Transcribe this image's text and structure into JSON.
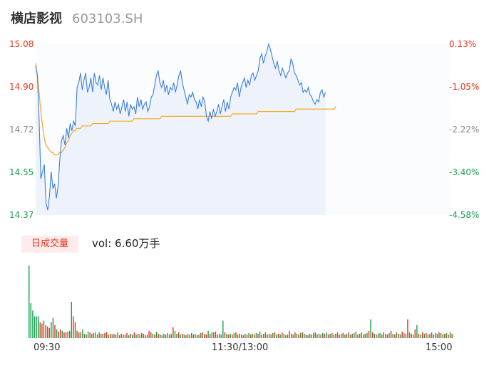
{
  "header": {
    "name": "横店影视",
    "code": "603103.SH"
  },
  "price_axis": {
    "left_ticks": [
      "15.08",
      "14.90",
      "14.72",
      "14.55",
      "14.37"
    ],
    "right_ticks": [
      "0.13%",
      "-1.05%",
      "-2.22%",
      "-3.40%",
      "-4.58%"
    ],
    "tick_colors": [
      "#e8341d",
      "#e8341d",
      "#888888",
      "#1aa04f",
      "#1aa04f"
    ]
  },
  "volume_panel": {
    "badge": "日成交量",
    "vol_label": "vol: 6.60万手"
  },
  "time_axis": {
    "labels": [
      "09:30",
      "11:30/13:00",
      "15:00"
    ]
  },
  "colors": {
    "price_line": "#3a7fe0",
    "avg_line": "#f5a623",
    "up": "#e8341d",
    "down": "#1aa04f",
    "fill": "#eef3fb"
  },
  "chart_data": [
    {
      "type": "line",
      "title": "",
      "xlabel": "",
      "ylabel": "",
      "x_range": [
        0,
        240
      ],
      "ylim": [
        14.37,
        15.08
      ],
      "series": [
        {
          "name": "",
          "values": [
            14.99,
            14.95,
            14.77,
            14.52,
            14.55,
            14.58,
            14.42,
            14.39,
            14.45,
            14.55,
            14.48,
            14.5,
            14.44,
            14.49,
            14.6,
            14.68,
            14.7,
            14.66,
            14.73,
            14.69,
            14.75,
            14.72,
            14.76,
            14.74,
            14.9,
            14.92,
            14.96,
            14.89,
            14.93,
            14.96,
            14.88,
            14.9,
            14.94,
            14.88,
            14.96,
            14.92,
            14.91,
            14.95,
            14.89,
            14.94,
            14.9,
            14.87,
            14.93,
            14.85,
            14.83,
            14.8,
            14.84,
            14.81,
            14.83,
            14.79,
            14.82,
            14.85,
            14.8,
            14.84,
            14.78,
            14.83,
            14.81,
            14.82,
            14.79,
            14.86,
            14.82,
            14.85,
            14.81,
            14.83,
            14.84,
            14.8,
            14.82,
            14.86,
            14.87,
            14.91,
            14.95,
            14.97,
            14.92,
            14.9,
            14.93,
            14.88,
            14.91,
            14.87,
            14.9,
            14.89,
            14.92,
            14.88,
            14.91,
            14.95,
            14.97,
            14.92,
            14.89,
            14.86,
            14.83,
            14.87,
            14.86,
            14.88,
            14.85,
            14.84,
            14.81,
            14.85,
            14.82,
            14.86,
            14.84,
            14.78,
            14.76,
            14.8,
            14.77,
            14.81,
            14.78,
            14.8,
            14.83,
            14.79,
            14.82,
            14.85,
            14.8,
            14.84,
            14.81,
            14.86,
            14.88,
            14.9,
            14.89,
            14.92,
            14.86,
            14.9,
            14.92,
            14.94,
            14.9,
            14.93,
            14.91,
            14.95,
            14.96,
            14.93,
            14.95,
            14.97,
            15.02,
            15.04,
            15.0,
            15.03,
            15.05,
            15.08,
            15.06,
            15.03,
            15.0,
            14.98,
            15.01,
            14.97,
            14.95,
            14.98,
            14.96,
            14.94,
            14.96,
            14.97,
            15.02,
            15.0,
            14.96,
            14.95,
            14.93,
            14.91,
            14.92,
            14.88,
            14.89,
            14.88,
            14.9,
            14.87,
            14.86,
            14.84,
            14.83,
            14.85,
            14.84,
            14.88,
            14.89,
            14.86,
            14.88
          ],
          "color": "#3a7fe0"
        },
        {
          "name": "",
          "values": [
            15.0,
            14.95,
            14.88,
            14.8,
            14.74,
            14.69,
            14.66,
            14.65,
            14.64,
            14.63,
            14.63,
            14.62,
            14.62,
            14.62,
            14.63,
            14.63,
            14.64,
            14.65,
            14.67,
            14.68,
            14.7,
            14.71,
            14.72,
            14.72,
            14.73,
            14.73,
            14.73,
            14.74,
            14.74,
            14.74,
            14.74,
            14.74,
            14.74,
            14.75,
            14.75,
            14.75,
            14.75,
            14.75,
            14.75,
            14.75,
            14.75,
            14.75,
            14.75,
            14.76,
            14.76,
            14.76,
            14.76,
            14.76,
            14.76,
            14.76,
            14.76,
            14.76,
            14.76,
            14.76,
            14.76,
            14.76,
            14.76,
            14.77,
            14.77,
            14.77,
            14.77,
            14.77,
            14.77,
            14.77,
            14.77,
            14.77,
            14.77,
            14.77,
            14.77,
            14.77,
            14.77,
            14.77,
            14.77,
            14.78,
            14.78,
            14.78,
            14.78,
            14.78,
            14.78,
            14.78,
            14.78,
            14.78,
            14.78,
            14.78,
            14.78,
            14.78,
            14.78,
            14.78,
            14.78,
            14.78,
            14.78,
            14.78,
            14.78,
            14.78,
            14.78,
            14.78,
            14.78,
            14.78,
            14.78,
            14.78,
            14.78,
            14.78,
            14.78,
            14.78,
            14.78,
            14.78,
            14.78,
            14.78,
            14.78,
            14.78,
            14.78,
            14.78,
            14.78,
            14.78,
            14.79,
            14.79,
            14.79,
            14.79,
            14.79,
            14.79,
            14.79,
            14.79,
            14.79,
            14.79,
            14.79,
            14.79,
            14.79,
            14.79,
            14.79,
            14.8,
            14.8,
            14.8,
            14.8,
            14.8,
            14.8,
            14.8,
            14.8,
            14.8,
            14.8,
            14.8,
            14.8,
            14.8,
            14.8,
            14.8,
            14.8,
            14.8,
            14.8,
            14.8,
            14.8,
            14.8,
            14.8,
            14.81,
            14.81,
            14.81,
            14.81,
            14.81,
            14.81,
            14.81,
            14.81,
            14.81,
            14.81,
            14.81,
            14.81,
            14.81,
            14.81,
            14.81,
            14.81,
            14.81,
            14.81,
            14.81,
            14.81,
            14.81,
            14.81,
            14.81,
            14.82
          ],
          "color": "#f5a623"
        }
      ]
    },
    {
      "type": "bar",
      "title": "",
      "xlabel": "",
      "ylabel": "",
      "ylim": [
        0,
        100
      ],
      "values": [
        100,
        48,
        38,
        30,
        30,
        30,
        22,
        20,
        24,
        18,
        16,
        14,
        22,
        28,
        18,
        12,
        9,
        12,
        10,
        8,
        8,
        9,
        10,
        50,
        30,
        22,
        10,
        8,
        8,
        12,
        6,
        5,
        9,
        8,
        6,
        7,
        8,
        5,
        8,
        6,
        6,
        7,
        8,
        5,
        6,
        5,
        6,
        5,
        8,
        4,
        6,
        5,
        5,
        7,
        4,
        6,
        5,
        8,
        5,
        6,
        5,
        7,
        6,
        4,
        5,
        10,
        8,
        6,
        5,
        9,
        6,
        5,
        4,
        6,
        5,
        7,
        5,
        6,
        15,
        10,
        6,
        8,
        5,
        6,
        5,
        4,
        6,
        5,
        7,
        5,
        6,
        4,
        5,
        7,
        8,
        6,
        5,
        10,
        6,
        8,
        8,
        9,
        5,
        6,
        5,
        24,
        8,
        6,
        5,
        6,
        5,
        7,
        8,
        5,
        6,
        5,
        4,
        6,
        5,
        7,
        5,
        6,
        5,
        7,
        6,
        9,
        5,
        6,
        8,
        5,
        6,
        5,
        7,
        8,
        5,
        6,
        5,
        8,
        6,
        4,
        5,
        10,
        6,
        5,
        8,
        6,
        5,
        7,
        8,
        6,
        5,
        4,
        6,
        5,
        7,
        8,
        5,
        6,
        5,
        7,
        6,
        8,
        5,
        6,
        7,
        5,
        6,
        8,
        5,
        6,
        7,
        5,
        6,
        8,
        5,
        6,
        7,
        9,
        5,
        6,
        8,
        5,
        6,
        7,
        10,
        26,
        8,
        6,
        5,
        6,
        7,
        5,
        8,
        6,
        5,
        7,
        10,
        6,
        5,
        8,
        6,
        5,
        9,
        7,
        6,
        26,
        8,
        6,
        5,
        12,
        18,
        6,
        5,
        8,
        6,
        7,
        5,
        6,
        8,
        5,
        7,
        6,
        8,
        7,
        5,
        6,
        7,
        5,
        8,
        6
      ],
      "colors": [
        "down",
        "down",
        "down",
        "down",
        "down",
        "down",
        "up",
        "up",
        "down",
        "up",
        "up",
        "up",
        "down",
        "down",
        "up",
        "down",
        "up",
        "up",
        "down",
        "up",
        "up",
        "down",
        "down",
        "down",
        "up",
        "up",
        "down",
        "up",
        "up",
        "down",
        "down",
        "up",
        "down",
        "up",
        "down",
        "up",
        "down",
        "up",
        "down",
        "up",
        "down",
        "up",
        "up",
        "down",
        "up",
        "down",
        "up",
        "up",
        "down",
        "up",
        "down",
        "up",
        "down",
        "up",
        "down",
        "up",
        "down",
        "up",
        "down",
        "up",
        "down",
        "up",
        "down",
        "up",
        "down",
        "up",
        "up",
        "down",
        "up",
        "down",
        "up",
        "up",
        "down",
        "down",
        "up",
        "down",
        "up",
        "down",
        "up",
        "down",
        "down",
        "up",
        "down",
        "up",
        "down",
        "up",
        "down",
        "up",
        "down",
        "up",
        "down",
        "up",
        "down",
        "up",
        "down",
        "up",
        "up",
        "down",
        "up",
        "down",
        "up",
        "up",
        "down",
        "up",
        "down",
        "down",
        "up",
        "down",
        "up",
        "down",
        "up",
        "down",
        "up",
        "down",
        "up",
        "down",
        "up",
        "down",
        "up",
        "down",
        "up",
        "down",
        "up",
        "down",
        "up",
        "down",
        "up",
        "up",
        "down",
        "up",
        "down",
        "up",
        "down",
        "up",
        "down",
        "up",
        "down",
        "up",
        "down",
        "up",
        "down",
        "up",
        "up",
        "down",
        "up",
        "down",
        "up",
        "down",
        "up",
        "down",
        "up",
        "down",
        "up",
        "down",
        "up",
        "down",
        "up",
        "down",
        "up",
        "down",
        "up",
        "down",
        "up",
        "down",
        "up",
        "down",
        "up",
        "down",
        "up",
        "down",
        "up",
        "down",
        "up",
        "down",
        "up",
        "down",
        "up",
        "down",
        "up",
        "down",
        "up",
        "down",
        "up",
        "down",
        "up",
        "down",
        "up",
        "down",
        "up",
        "down",
        "down",
        "up",
        "up",
        "down",
        "up",
        "down",
        "up",
        "down",
        "up",
        "down",
        "up",
        "down",
        "up",
        "up",
        "down",
        "up",
        "down",
        "up",
        "down",
        "up",
        "down",
        "up",
        "down",
        "up",
        "down",
        "up",
        "down",
        "up",
        "down",
        "up",
        "down",
        "up",
        "down",
        "up",
        "down",
        "up",
        "down",
        "up",
        "down",
        "up",
        "down",
        "up",
        "down",
        "up",
        "down",
        "up"
      ]
    }
  ]
}
